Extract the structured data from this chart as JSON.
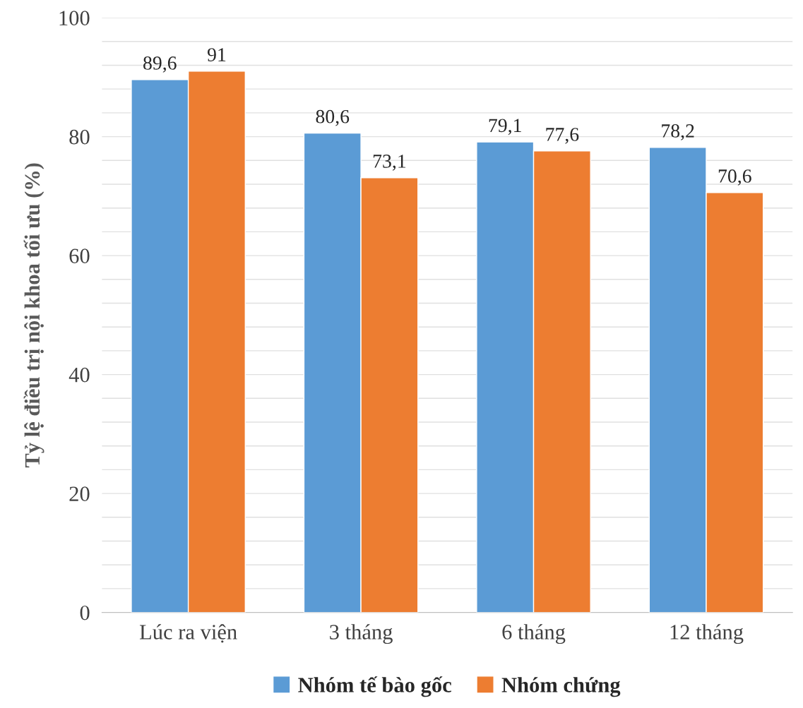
{
  "chart_data": {
    "type": "bar",
    "ylabel": "Tỷ lệ điều trị nội khoa tối ưu (%)",
    "categories": [
      "Lúc ra viện",
      "3 tháng",
      "6 tháng",
      "12 tháng"
    ],
    "series": [
      {
        "name": "Nhóm tế bào gốc",
        "color": "#5b9bd5",
        "values": [
          89.6,
          80.6,
          79.1,
          78.2
        ],
        "value_labels": [
          "89,6",
          "80,6",
          "79,1",
          "78,2"
        ]
      },
      {
        "name": "Nhóm chứng",
        "color": "#ed7d31",
        "values": [
          91,
          73.1,
          77.6,
          70.6
        ],
        "value_labels": [
          "91",
          "73,1",
          "77,6",
          "70,6"
        ]
      }
    ],
    "ylim": [
      0,
      100
    ],
    "yticks": [
      0,
      {
        "value": 4,
        "label": null
      },
      {
        "value": 8,
        "label": null
      },
      {
        "value": 12,
        "label": null
      },
      {
        "value": 16,
        "label": null
      },
      20,
      {
        "value": 24,
        "label": null
      },
      {
        "value": 28,
        "label": null
      },
      {
        "value": 32,
        "label": null
      },
      {
        "value": 36,
        "label": null
      },
      40,
      {
        "value": 44,
        "label": null
      },
      {
        "value": 48,
        "label": null
      },
      {
        "value": 52,
        "label": null
      },
      {
        "value": 56,
        "label": null
      },
      60,
      {
        "value": 64,
        "label": null
      },
      {
        "value": 68,
        "label": null
      },
      {
        "value": 72,
        "label": null
      },
      {
        "value": 76,
        "label": null
      },
      80,
      {
        "value": 84,
        "label": null
      },
      {
        "value": 88,
        "label": null
      },
      {
        "value": 92,
        "label": null
      },
      {
        "value": 96,
        "label": null
      },
      100
    ],
    "grid": "y",
    "legend": "bottom"
  }
}
